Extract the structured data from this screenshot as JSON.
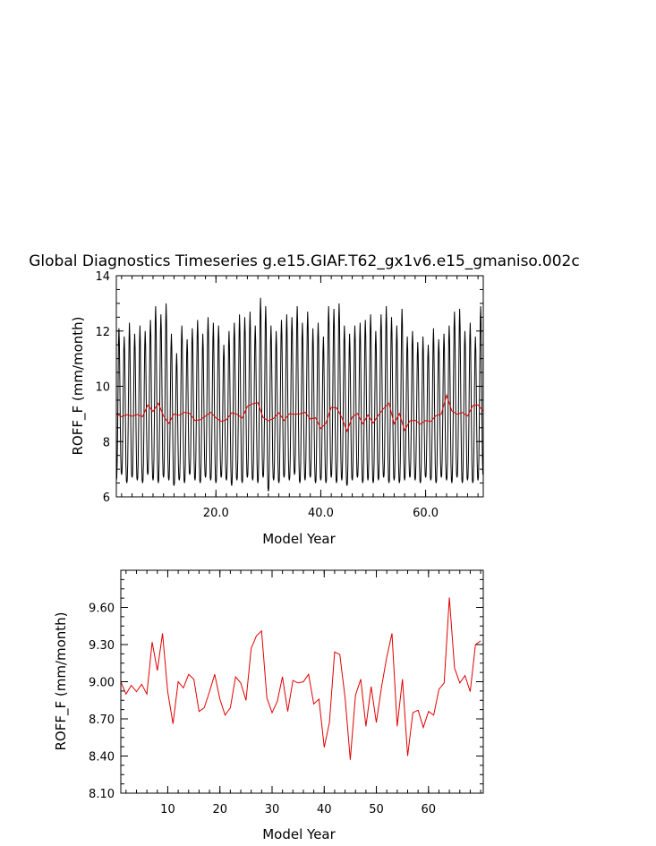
{
  "title": "Global Diagnostics Timeseries g.e15.GIAF.T62_gx1v6.e15_gmaniso.002c",
  "colors": {
    "monthly": "#000000",
    "annual": "#e00000",
    "axes": "#000000"
  },
  "chart_data": [
    {
      "type": "line",
      "xlabel": "Model Year",
      "ylabel": "ROFF_F (mm/month)",
      "xlim": [
        1,
        71
      ],
      "ylim": [
        6,
        14
      ],
      "x_ticks": [
        20,
        40,
        60
      ],
      "x_tick_labels": [
        "20.0",
        "40.0",
        "60.0"
      ],
      "y_ticks": [
        6,
        8,
        10,
        12,
        14
      ],
      "y_tick_labels": [
        "6",
        "8",
        "10",
        "12",
        "14"
      ],
      "grid": false,
      "series": [
        {
          "key": "monthly",
          "description": "monthly global mean, seasonal cycle (peak / trough per year)",
          "peaks": [
            12.1,
            11.8,
            12.3,
            11.9,
            12.2,
            12.0,
            12.4,
            12.9,
            12.6,
            13.0,
            11.9,
            11.2,
            12.2,
            11.7,
            12.1,
            12.4,
            11.9,
            12.5,
            12.3,
            12.2,
            11.5,
            12.0,
            12.3,
            12.6,
            12.5,
            12.7,
            12.2,
            13.2,
            12.9,
            12.2,
            12.0,
            12.4,
            12.6,
            12.5,
            12.9,
            12.3,
            12.7,
            12.1,
            12.3,
            11.8,
            12.9,
            12.8,
            13.0,
            12.2,
            11.9,
            12.2,
            12.3,
            12.4,
            12.6,
            12.0,
            12.6,
            12.9,
            12.5,
            12.2,
            12.8,
            11.8,
            12.0,
            11.6,
            11.8,
            11.5,
            12.1,
            11.7,
            11.9,
            12.2,
            12.7,
            12.8,
            12.0,
            12.3,
            11.8,
            12.9,
            12.6
          ],
          "troughs": [
            6.6,
            6.8,
            6.5,
            6.7,
            6.6,
            6.5,
            6.8,
            6.6,
            6.5,
            6.7,
            6.6,
            6.4,
            6.6,
            6.5,
            6.8,
            6.6,
            6.5,
            6.7,
            6.6,
            6.5,
            6.7,
            6.6,
            6.4,
            6.6,
            6.5,
            6.7,
            6.6,
            6.5,
            6.7,
            6.2,
            6.6,
            6.5,
            6.7,
            6.6,
            6.8,
            6.5,
            6.6,
            6.7,
            6.5,
            6.6,
            6.5,
            6.7,
            6.5,
            6.6,
            6.4,
            6.6,
            6.7,
            6.5,
            6.6,
            6.5,
            6.6,
            6.7,
            6.5,
            6.6,
            6.5,
            6.6,
            6.7,
            6.6,
            6.5,
            6.7,
            6.6,
            6.5,
            6.7,
            6.6,
            6.5,
            6.7,
            6.5,
            6.6,
            6.5,
            6.6,
            6.7
          ]
        },
        {
          "key": "annual",
          "description": "annual mean",
          "x": [
            1,
            2,
            3,
            4,
            5,
            6,
            7,
            8,
            9,
            10,
            11,
            12,
            13,
            14,
            15,
            16,
            17,
            18,
            19,
            20,
            21,
            22,
            23,
            24,
            25,
            26,
            27,
            28,
            29,
            30,
            31,
            32,
            33,
            34,
            35,
            36,
            37,
            38,
            39,
            40,
            41,
            42,
            43,
            44,
            45,
            46,
            47,
            48,
            49,
            50,
            51,
            52,
            53,
            54,
            55,
            56,
            57,
            58,
            59,
            60,
            61,
            62,
            63,
            64,
            65,
            66,
            67,
            68,
            69,
            70,
            71
          ],
          "y": [
            9.0,
            8.9,
            8.97,
            8.92,
            8.98,
            8.9,
            9.32,
            9.09,
            9.39,
            8.92,
            8.66,
            9.0,
            8.95,
            9.06,
            9.02,
            8.76,
            8.79,
            8.92,
            9.06,
            8.86,
            8.73,
            8.79,
            9.04,
            8.99,
            8.85,
            9.27,
            9.37,
            9.41,
            8.87,
            8.75,
            8.84,
            9.04,
            8.76,
            9.01,
            8.99,
            9.0,
            9.06,
            8.82,
            8.86,
            8.47,
            8.67,
            9.24,
            9.22,
            8.87,
            8.37,
            8.89,
            9.02,
            8.64,
            8.96,
            8.67,
            8.96,
            9.2,
            9.39,
            8.64,
            9.02,
            8.4,
            8.75,
            8.77,
            8.63,
            8.76,
            8.73,
            8.94,
            8.99,
            9.68,
            9.11,
            8.99,
            9.05,
            8.92,
            9.3,
            9.33,
            9.1
          ]
        }
      ]
    },
    {
      "type": "line",
      "xlabel": "Model Year",
      "ylabel": "ROFF_F (mm/month)",
      "xlim": [
        1,
        70.5
      ],
      "ylim": [
        8.1,
        9.9
      ],
      "x_ticks": [
        10,
        20,
        30,
        40,
        50,
        60
      ],
      "x_tick_labels": [
        "10",
        "20",
        "30",
        "40",
        "50",
        "60"
      ],
      "y_ticks": [
        8.1,
        8.4,
        8.7,
        9.0,
        9.3,
        9.6
      ],
      "y_tick_labels": [
        "8.10",
        "8.40",
        "8.70",
        "9.00",
        "9.30",
        "9.60"
      ],
      "grid": false,
      "series": [
        {
          "key": "annual",
          "x": [
            1,
            2,
            3,
            4,
            5,
            6,
            7,
            8,
            9,
            10,
            11,
            12,
            13,
            14,
            15,
            16,
            17,
            18,
            19,
            20,
            21,
            22,
            23,
            24,
            25,
            26,
            27,
            28,
            29,
            30,
            31,
            32,
            33,
            34,
            35,
            36,
            37,
            38,
            39,
            40,
            41,
            42,
            43,
            44,
            45,
            46,
            47,
            48,
            49,
            50,
            51,
            52,
            53,
            54,
            55,
            56,
            57,
            58,
            59,
            60,
            61,
            62,
            63,
            64,
            65,
            66,
            67,
            68,
            69,
            70
          ],
          "y": [
            9.0,
            8.9,
            8.97,
            8.92,
            8.98,
            8.9,
            9.32,
            9.09,
            9.39,
            8.92,
            8.66,
            9.0,
            8.95,
            9.06,
            9.02,
            8.76,
            8.79,
            8.92,
            9.06,
            8.86,
            8.73,
            8.79,
            9.04,
            8.99,
            8.85,
            9.27,
            9.37,
            9.41,
            8.87,
            8.75,
            8.84,
            9.04,
            8.76,
            9.01,
            8.99,
            9.0,
            9.06,
            8.82,
            8.86,
            8.47,
            8.67,
            9.24,
            9.22,
            8.87,
            8.37,
            8.89,
            9.02,
            8.64,
            8.96,
            8.67,
            8.96,
            9.2,
            9.39,
            8.64,
            9.02,
            8.4,
            8.75,
            8.77,
            8.63,
            8.76,
            8.73,
            8.94,
            8.99,
            9.68,
            9.11,
            8.99,
            9.05,
            8.92,
            9.3,
            9.33
          ]
        }
      ]
    }
  ]
}
